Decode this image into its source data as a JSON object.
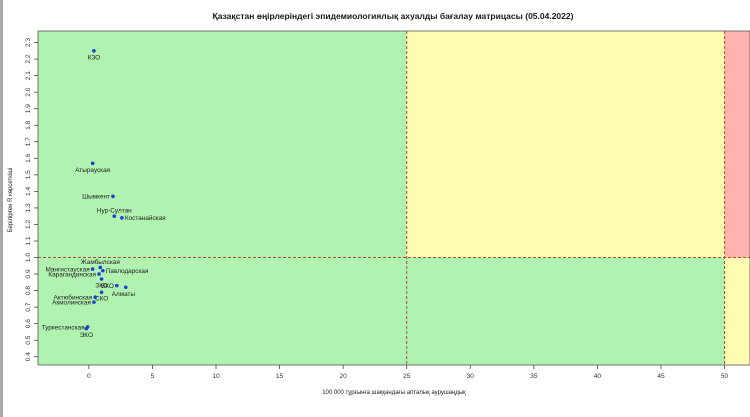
{
  "chart_data": {
    "type": "scatter",
    "title": "Қазақстан өңірлеріндегі эпидемиологиялық ахуалды бағалау матрицасы  (05.04.2022)",
    "xlabel": "100 000 тұрғынға шаққандағы апталық аурушаңдық",
    "ylabel": "Берілірген R көрсеткіші",
    "xlim": [
      -4,
      52
    ],
    "ylim": [
      0.35,
      2.37
    ],
    "xticks": [
      0,
      5,
      10,
      15,
      20,
      25,
      30,
      35,
      40,
      45,
      50
    ],
    "yticks": [
      0.4,
      0.5,
      0.6,
      0.7,
      0.8,
      0.9,
      1.0,
      1.1,
      1.2,
      1.3,
      1.4,
      1.5,
      1.6,
      1.7,
      1.8,
      1.9,
      2.0,
      2.1,
      2.2,
      2.3
    ],
    "grid": false,
    "zones": [
      {
        "x": [
          -4,
          25
        ],
        "y": [
          1.0,
          2.37
        ],
        "color": "#b0f2b0"
      },
      {
        "x": [
          25,
          50
        ],
        "y": [
          1.0,
          2.37
        ],
        "color": "#fffbb0"
      },
      {
        "x": [
          50,
          52
        ],
        "y": [
          1.0,
          2.37
        ],
        "color": "#ffb3b0"
      },
      {
        "x": [
          -4,
          50
        ],
        "y": [
          0.35,
          1.0
        ],
        "color": "#b0f2b0"
      },
      {
        "x": [
          50,
          52
        ],
        "y": [
          0.35,
          1.0
        ],
        "color": "#fffbb0"
      }
    ],
    "thresholds": {
      "x": [
        25,
        50
      ],
      "y": 1.0,
      "color": "#b04a2a"
    },
    "point_color": "#1f3fd1",
    "points": [
      {
        "label": "КЗО",
        "x": 0.4,
        "y": 2.25,
        "label_pos": "below"
      },
      {
        "label": "Атырауская",
        "x": 0.3,
        "y": 1.57,
        "label_pos": "below"
      },
      {
        "label": "Шымкент",
        "x": 1.9,
        "y": 1.37,
        "label_pos": "left"
      },
      {
        "label": "Нур-Султан",
        "x": 2.0,
        "y": 1.25,
        "label_pos": "above"
      },
      {
        "label": "Костанайская",
        "x": 2.6,
        "y": 1.24,
        "label_pos": "right"
      },
      {
        "label": "Жамбылская",
        "x": 0.9,
        "y": 0.94,
        "label_pos": "above"
      },
      {
        "label": "Мангистауская",
        "x": 0.3,
        "y": 0.93,
        "label_pos": "left"
      },
      {
        "label": "Павлодарская",
        "x": 1.1,
        "y": 0.92,
        "label_pos": "right"
      },
      {
        "label": "Карагандинская",
        "x": 0.8,
        "y": 0.9,
        "label_pos": "left"
      },
      {
        "label": "ЗКО",
        "x": 1.0,
        "y": 0.87,
        "label_pos": "below"
      },
      {
        "label": "ВКО",
        "x": 2.2,
        "y": 0.83,
        "label_pos": "left"
      },
      {
        "label": "Алматы",
        "x": 2.9,
        "y": 0.82,
        "label_pos": "below-right"
      },
      {
        "label": "СКО",
        "x": 1.0,
        "y": 0.79,
        "label_pos": "below"
      },
      {
        "label": "Актюбинская",
        "x": 0.5,
        "y": 0.76,
        "label_pos": "left"
      },
      {
        "label": "Акмолинская",
        "x": 0.4,
        "y": 0.73,
        "label_pos": "left"
      },
      {
        "label": "Туркестанская",
        "x": -0.1,
        "y": 0.58,
        "label_pos": "left"
      },
      {
        "label": "ЭКО",
        "x": -0.2,
        "y": 0.57,
        "label_pos": "below"
      }
    ]
  }
}
